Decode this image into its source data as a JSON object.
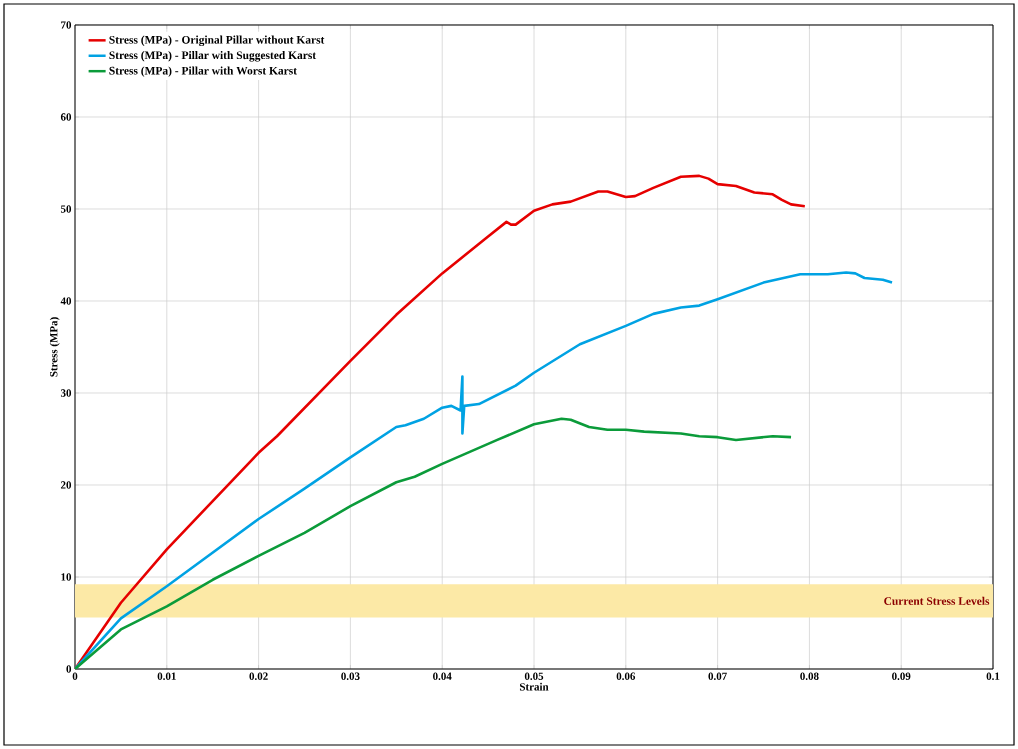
{
  "chart_data": {
    "type": "line",
    "xlabel": "Strain",
    "ylabel": "Stress (MPa)",
    "xlim": [
      0,
      0.1
    ],
    "ylim": [
      0,
      70
    ],
    "xticks": [
      0,
      0.01,
      0.02,
      0.03,
      0.04,
      0.05,
      0.06,
      0.07,
      0.08,
      0.09,
      0.1
    ],
    "yticks": [
      0,
      10,
      20,
      30,
      40,
      50,
      60,
      70
    ],
    "grid": true,
    "legend": "top left",
    "marker": "none",
    "line_style": "solid",
    "bands": [
      {
        "axis": "y",
        "from": 5.6,
        "to": 9.2,
        "label": "Current Stress Levels",
        "color": "#fce9a6"
      }
    ],
    "series": [
      {
        "name": "Stress (MPa) - Original Pillar without Karst",
        "color": "#e60000",
        "x": [
          0,
          0.005,
          0.01,
          0.02,
          0.022,
          0.03,
          0.035,
          0.04,
          0.045,
          0.047,
          0.0475,
          0.048,
          0.05,
          0.052,
          0.054,
          0.057,
          0.058,
          0.06,
          0.061,
          0.063,
          0.066,
          0.068,
          0.069,
          0.07,
          0.072,
          0.074,
          0.076,
          0.077,
          0.078,
          0.0795
        ],
        "values": [
          0,
          7.2,
          13,
          23.5,
          25.3,
          33.5,
          38.5,
          43,
          47,
          48.6,
          48.3,
          48.3,
          49.8,
          50.5,
          50.8,
          51.9,
          51.9,
          51.3,
          51.4,
          52.3,
          53.5,
          53.6,
          53.3,
          52.7,
          52.5,
          51.8,
          51.6,
          51.0,
          50.5,
          50.3
        ]
      },
      {
        "name": "Stress (MPa) - Pillar with Suggested Karst",
        "color": "#00a2e3",
        "x": [
          0,
          0.005,
          0.01,
          0.02,
          0.025,
          0.03,
          0.035,
          0.036,
          0.038,
          0.04,
          0.041,
          0.042,
          0.0422,
          0.0422,
          0.0424,
          0.044,
          0.048,
          0.05,
          0.055,
          0.06,
          0.063,
          0.066,
          0.068,
          0.07,
          0.075,
          0.079,
          0.082,
          0.084,
          0.085,
          0.086,
          0.088,
          0.089
        ],
        "values": [
          0,
          5.5,
          9,
          16.3,
          19.6,
          23,
          26.3,
          26.5,
          27.2,
          28.4,
          28.6,
          28.1,
          31.8,
          25.6,
          28.6,
          28.8,
          30.8,
          32.2,
          35.3,
          37.3,
          38.6,
          39.3,
          39.5,
          40.2,
          42,
          42.9,
          42.9,
          43.1,
          43,
          42.5,
          42.3,
          42
        ]
      },
      {
        "name": "Stress (MPa) - Pillar with Worst Karst",
        "color": "#0b9b3a",
        "x": [
          0,
          0.005,
          0.01,
          0.015,
          0.02,
          0.025,
          0.03,
          0.035,
          0.037,
          0.04,
          0.043,
          0.046,
          0.05,
          0.053,
          0.054,
          0.056,
          0.058,
          0.06,
          0.062,
          0.066,
          0.068,
          0.07,
          0.072,
          0.074,
          0.076,
          0.078
        ],
        "values": [
          0,
          4.3,
          6.8,
          9.7,
          12.3,
          14.8,
          17.7,
          20.3,
          20.9,
          22.3,
          23.6,
          24.9,
          26.6,
          27.2,
          27.1,
          26.3,
          26,
          26,
          25.8,
          25.6,
          25.3,
          25.2,
          24.9,
          25.1,
          25.3,
          25.2
        ]
      }
    ]
  }
}
